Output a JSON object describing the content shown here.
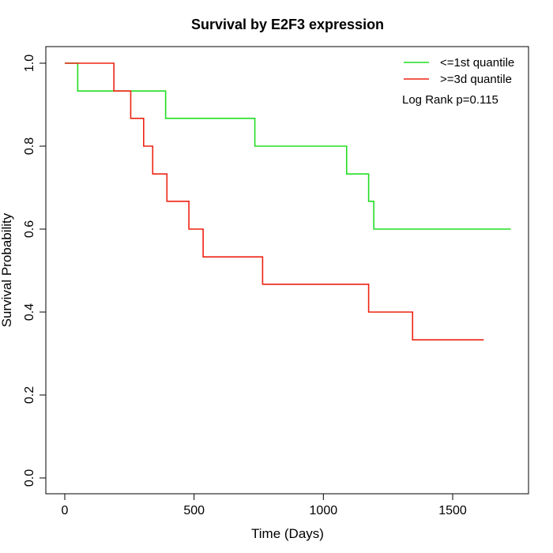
{
  "chart_data": {
    "type": "line",
    "title": "Survival by E2F3 expression",
    "xlabel": "Time (Days)",
    "ylabel": "Survival Probability",
    "xlim": [
      0,
      1750
    ],
    "ylim": [
      0,
      1
    ],
    "xticks": [
      0,
      500,
      1000,
      1500
    ],
    "yticks": [
      0.0,
      0.2,
      0.4,
      0.6,
      0.8,
      1.0
    ],
    "xtick_labels": [
      "0",
      "500",
      "1000",
      "1500"
    ],
    "ytick_labels": [
      "0.0",
      "0.2",
      "0.4",
      "0.6",
      "0.8",
      "1.0"
    ],
    "grid": false,
    "legend_position": "top-right",
    "series": [
      {
        "name": "<=1st quantile",
        "color": "#22dd22",
        "step_points": [
          {
            "x": 0,
            "y": 1.0
          },
          {
            "x": 50,
            "y": 0.933
          },
          {
            "x": 390,
            "y": 0.867
          },
          {
            "x": 735,
            "y": 0.8
          },
          {
            "x": 1090,
            "y": 0.733
          },
          {
            "x": 1175,
            "y": 0.667
          },
          {
            "x": 1195,
            "y": 0.6
          },
          {
            "x": 1725,
            "y": 0.6
          }
        ]
      },
      {
        "name": ">=3d quantile",
        "color": "#ee2211",
        "step_points": [
          {
            "x": 0,
            "y": 1.0
          },
          {
            "x": 190,
            "y": 0.933
          },
          {
            "x": 255,
            "y": 0.867
          },
          {
            "x": 305,
            "y": 0.8
          },
          {
            "x": 340,
            "y": 0.733
          },
          {
            "x": 395,
            "y": 0.667
          },
          {
            "x": 480,
            "y": 0.6
          },
          {
            "x": 535,
            "y": 0.533
          },
          {
            "x": 765,
            "y": 0.467
          },
          {
            "x": 1175,
            "y": 0.4
          },
          {
            "x": 1345,
            "y": 0.333
          },
          {
            "x": 1620,
            "y": 0.333
          }
        ]
      }
    ],
    "annotation": "Log Rank p=0.115"
  }
}
